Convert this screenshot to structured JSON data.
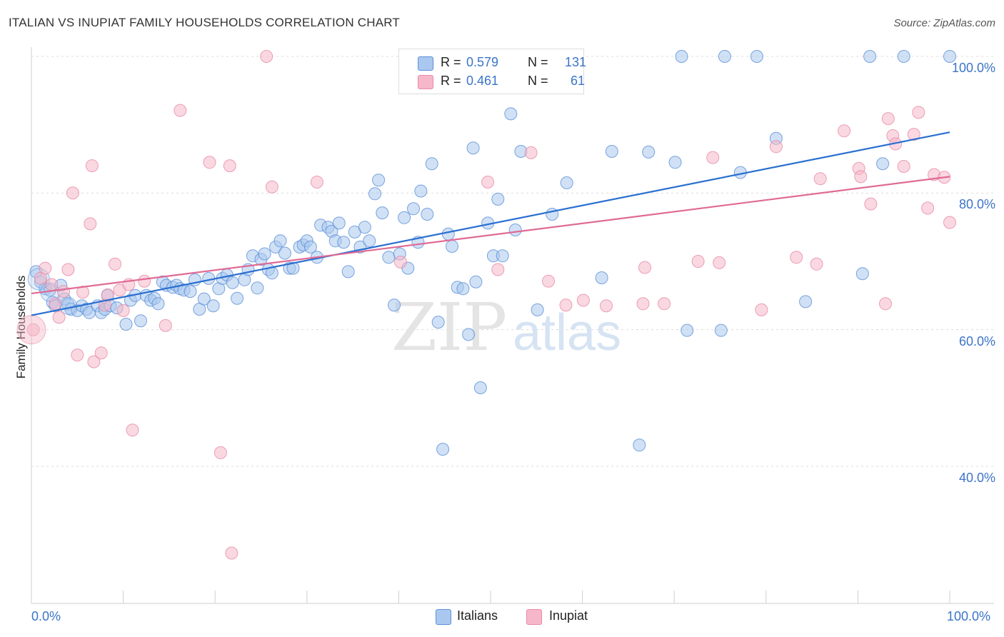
{
  "header": {
    "title": "ITALIAN VS INUPIAT FAMILY HOUSEHOLDS CORRELATION CHART",
    "source": "Source: ZipAtlas.com"
  },
  "watermark": {
    "zip": "ZIP",
    "atlas": "atlas"
  },
  "legend": {
    "r_label": "R =",
    "n_label": "N =",
    "italians": {
      "r": "0.579",
      "n": "131",
      "color": "#aac8ef"
    },
    "inupiat": {
      "r": "0.461",
      "n": "61",
      "color": "#f6b8c8"
    }
  },
  "bottom_legend": {
    "italians": "Italians",
    "inupiat": "Inupiat"
  },
  "chart_data": {
    "type": "scatter",
    "title": "ITALIAN VS INUPIAT FAMILY HOUSEHOLDS CORRELATION CHART",
    "xlabel": "",
    "ylabel": "Family Households",
    "xlim": [
      0,
      100
    ],
    "ylim": [
      20,
      100
    ],
    "x_tick_labels": [
      "0.0%",
      "100.0%"
    ],
    "y_tick_labels": [
      "40.0%",
      "60.0%",
      "80.0%",
      "100.0%"
    ],
    "y_ticks": [
      40,
      60,
      80,
      100
    ],
    "grid": true,
    "legend_position": "top-center",
    "colors": {
      "italians_fill": "#aac8ef",
      "italians_stroke": "#5b8fd6",
      "italians_line": "#2a6fd0",
      "inupiat_fill": "#f6b8c8",
      "inupiat_stroke": "#e68aa6",
      "inupiat_line": "#e06a95"
    },
    "series": [
      {
        "name": "Italians",
        "trend": {
          "x": [
            0,
            100
          ],
          "y": [
            62.1,
            88.9
          ]
        },
        "points": [
          [
            0.5,
            68.5
          ],
          [
            1,
            67
          ],
          [
            1.5,
            66
          ],
          [
            2,
            65.8
          ],
          [
            2.3,
            64
          ],
          [
            2.6,
            63.5
          ],
          [
            3.2,
            66.5
          ],
          [
            3.6,
            64.5
          ],
          [
            4,
            63.7
          ],
          [
            4.3,
            63
          ],
          [
            5,
            62.8
          ],
          [
            5.5,
            63.5
          ],
          [
            6,
            63
          ],
          [
            6.3,
            62.5
          ],
          [
            7.2,
            63.5
          ],
          [
            7.6,
            62.5
          ],
          [
            8,
            63
          ],
          [
            8.3,
            65
          ],
          [
            8.6,
            63.5
          ],
          [
            9.3,
            63.2
          ],
          [
            10.3,
            60.8
          ],
          [
            10.8,
            64.3
          ],
          [
            11.3,
            65
          ],
          [
            11.9,
            61.3
          ],
          [
            12.5,
            65
          ],
          [
            13,
            64.3
          ],
          [
            13.4,
            64.6
          ],
          [
            13.8,
            63.8
          ],
          [
            14.3,
            67
          ],
          [
            14.7,
            66.5
          ],
          [
            15.4,
            66.2
          ],
          [
            15.8,
            66.5
          ],
          [
            16.2,
            66
          ],
          [
            16.6,
            65.8
          ],
          [
            17.3,
            65.6
          ],
          [
            17.8,
            67.3
          ],
          [
            18.3,
            63
          ],
          [
            18.8,
            64.5
          ],
          [
            19.3,
            67.5
          ],
          [
            19.8,
            63.5
          ],
          [
            20.4,
            66
          ],
          [
            20.8,
            67.5
          ],
          [
            21.3,
            68
          ],
          [
            21.9,
            66.9
          ],
          [
            22.4,
            64.6
          ],
          [
            23.2,
            67.3
          ],
          [
            23.6,
            68.8
          ],
          [
            24.1,
            70.8
          ],
          [
            24.6,
            66.1
          ],
          [
            25,
            70.3
          ],
          [
            25.4,
            71.1
          ],
          [
            25.8,
            68.8
          ],
          [
            26.2,
            68.3
          ],
          [
            26.6,
            72.1
          ],
          [
            27.1,
            73
          ],
          [
            27.6,
            71.2
          ],
          [
            28.1,
            69
          ],
          [
            28.5,
            69
          ],
          [
            29.2,
            72.1
          ],
          [
            29.6,
            72.4
          ],
          [
            30,
            73
          ],
          [
            30.4,
            72.1
          ],
          [
            31.1,
            70.6
          ],
          [
            31.5,
            75.3
          ],
          [
            32.3,
            75
          ],
          [
            32.7,
            74.4
          ],
          [
            33.1,
            73
          ],
          [
            33.5,
            75.6
          ],
          [
            34,
            72.8
          ],
          [
            34.5,
            68.5
          ],
          [
            35.2,
            74.3
          ],
          [
            35.8,
            72.1
          ],
          [
            36.3,
            75
          ],
          [
            36.8,
            73
          ],
          [
            37.4,
            79.9
          ],
          [
            37.8,
            81.9
          ],
          [
            38.2,
            77.1
          ],
          [
            38.9,
            70.6
          ],
          [
            39.5,
            63.6
          ],
          [
            40.1,
            71.1
          ],
          [
            40.6,
            76.4
          ],
          [
            41,
            69
          ],
          [
            41.6,
            77.7
          ],
          [
            42.1,
            72.8
          ],
          [
            42.4,
            80.3
          ],
          [
            43.1,
            76.9
          ],
          [
            43.6,
            84.3
          ],
          [
            44.3,
            61.1
          ],
          [
            44.8,
            42.5
          ],
          [
            45.4,
            74
          ],
          [
            45.8,
            72.2
          ],
          [
            46.4,
            66.2
          ],
          [
            47,
            66
          ],
          [
            47.6,
            59.3
          ],
          [
            48.1,
            86.6
          ],
          [
            48.4,
            67
          ],
          [
            48.9,
            51.5
          ],
          [
            49.7,
            75.6
          ],
          [
            50.3,
            70.8
          ],
          [
            50.8,
            79.1
          ],
          [
            51.3,
            70.8
          ],
          [
            52.2,
            91.6
          ],
          [
            52.7,
            74.6
          ],
          [
            53.3,
            86.1
          ],
          [
            55.1,
            62.9
          ],
          [
            56.7,
            76.9
          ],
          [
            58.3,
            81.5
          ],
          [
            59.1,
            100
          ],
          [
            62.1,
            67.6
          ],
          [
            63.2,
            86.1
          ],
          [
            66.2,
            43.1
          ],
          [
            67.2,
            86
          ],
          [
            70.1,
            84.5
          ],
          [
            70.8,
            100
          ],
          [
            71.4,
            59.9
          ],
          [
            75.1,
            59.9
          ],
          [
            75.5,
            100
          ],
          [
            77.2,
            83
          ],
          [
            79,
            100
          ],
          [
            81.1,
            88
          ],
          [
            84.3,
            64.1
          ],
          [
            90.5,
            68.2
          ],
          [
            91.3,
            100
          ],
          [
            92.7,
            84.3
          ],
          [
            95,
            100
          ],
          [
            100,
            100
          ]
        ]
      },
      {
        "name": "Inupiat",
        "trend": {
          "x": [
            0,
            100
          ],
          "y": [
            65.3,
            82.4
          ]
        },
        "points": [
          [
            0.2,
            60
          ],
          [
            1,
            67.5
          ],
          [
            1.5,
            69
          ],
          [
            2.2,
            66.6
          ],
          [
            2.6,
            63.8
          ],
          [
            3,
            61.8
          ],
          [
            3.5,
            65.6
          ],
          [
            4,
            68.8
          ],
          [
            4.5,
            80
          ],
          [
            5,
            56.3
          ],
          [
            5.6,
            65.5
          ],
          [
            6.4,
            75.5
          ],
          [
            6.6,
            84
          ],
          [
            6.8,
            55.3
          ],
          [
            7.6,
            56.6
          ],
          [
            8,
            63.6
          ],
          [
            8.3,
            65.1
          ],
          [
            9.1,
            69.6
          ],
          [
            9.6,
            65.8
          ],
          [
            10,
            62.8
          ],
          [
            10.6,
            66.6
          ],
          [
            11,
            45.3
          ],
          [
            12.3,
            67.1
          ],
          [
            14.6,
            60.6
          ],
          [
            16.2,
            92.1
          ],
          [
            19.4,
            84.5
          ],
          [
            20.6,
            42
          ],
          [
            21.8,
            27.3
          ],
          [
            21.6,
            84
          ],
          [
            25.6,
            100
          ],
          [
            26.2,
            80.9
          ],
          [
            31.1,
            81.6
          ],
          [
            40.2,
            69.9
          ],
          [
            49.7,
            81.6
          ],
          [
            50.8,
            68.8
          ],
          [
            54.4,
            85.9
          ],
          [
            56.3,
            67.1
          ],
          [
            58.2,
            63.6
          ],
          [
            60.1,
            64.3
          ],
          [
            62.6,
            63.5
          ],
          [
            66.6,
            63.8
          ],
          [
            66.8,
            69.1
          ],
          [
            68.9,
            63.8
          ],
          [
            72.6,
            70
          ],
          [
            74.2,
            85.2
          ],
          [
            74.9,
            69.8
          ],
          [
            79.5,
            62.9
          ],
          [
            81.1,
            86.8
          ],
          [
            83.3,
            70.6
          ],
          [
            85.5,
            69.6
          ],
          [
            85.9,
            82.1
          ],
          [
            88.5,
            89.1
          ],
          [
            90.1,
            83.6
          ],
          [
            90.3,
            82.4
          ],
          [
            91.4,
            78.4
          ],
          [
            93,
            63.8
          ],
          [
            93.3,
            90.9
          ],
          [
            93.8,
            88.4
          ],
          [
            94.1,
            87.2
          ],
          [
            95,
            83.9
          ],
          [
            96.1,
            88.6
          ],
          [
            96.6,
            91.8
          ],
          [
            97.6,
            77.8
          ],
          [
            98.3,
            82.7
          ],
          [
            99.4,
            82.3
          ],
          [
            100,
            75.7
          ]
        ]
      }
    ]
  }
}
